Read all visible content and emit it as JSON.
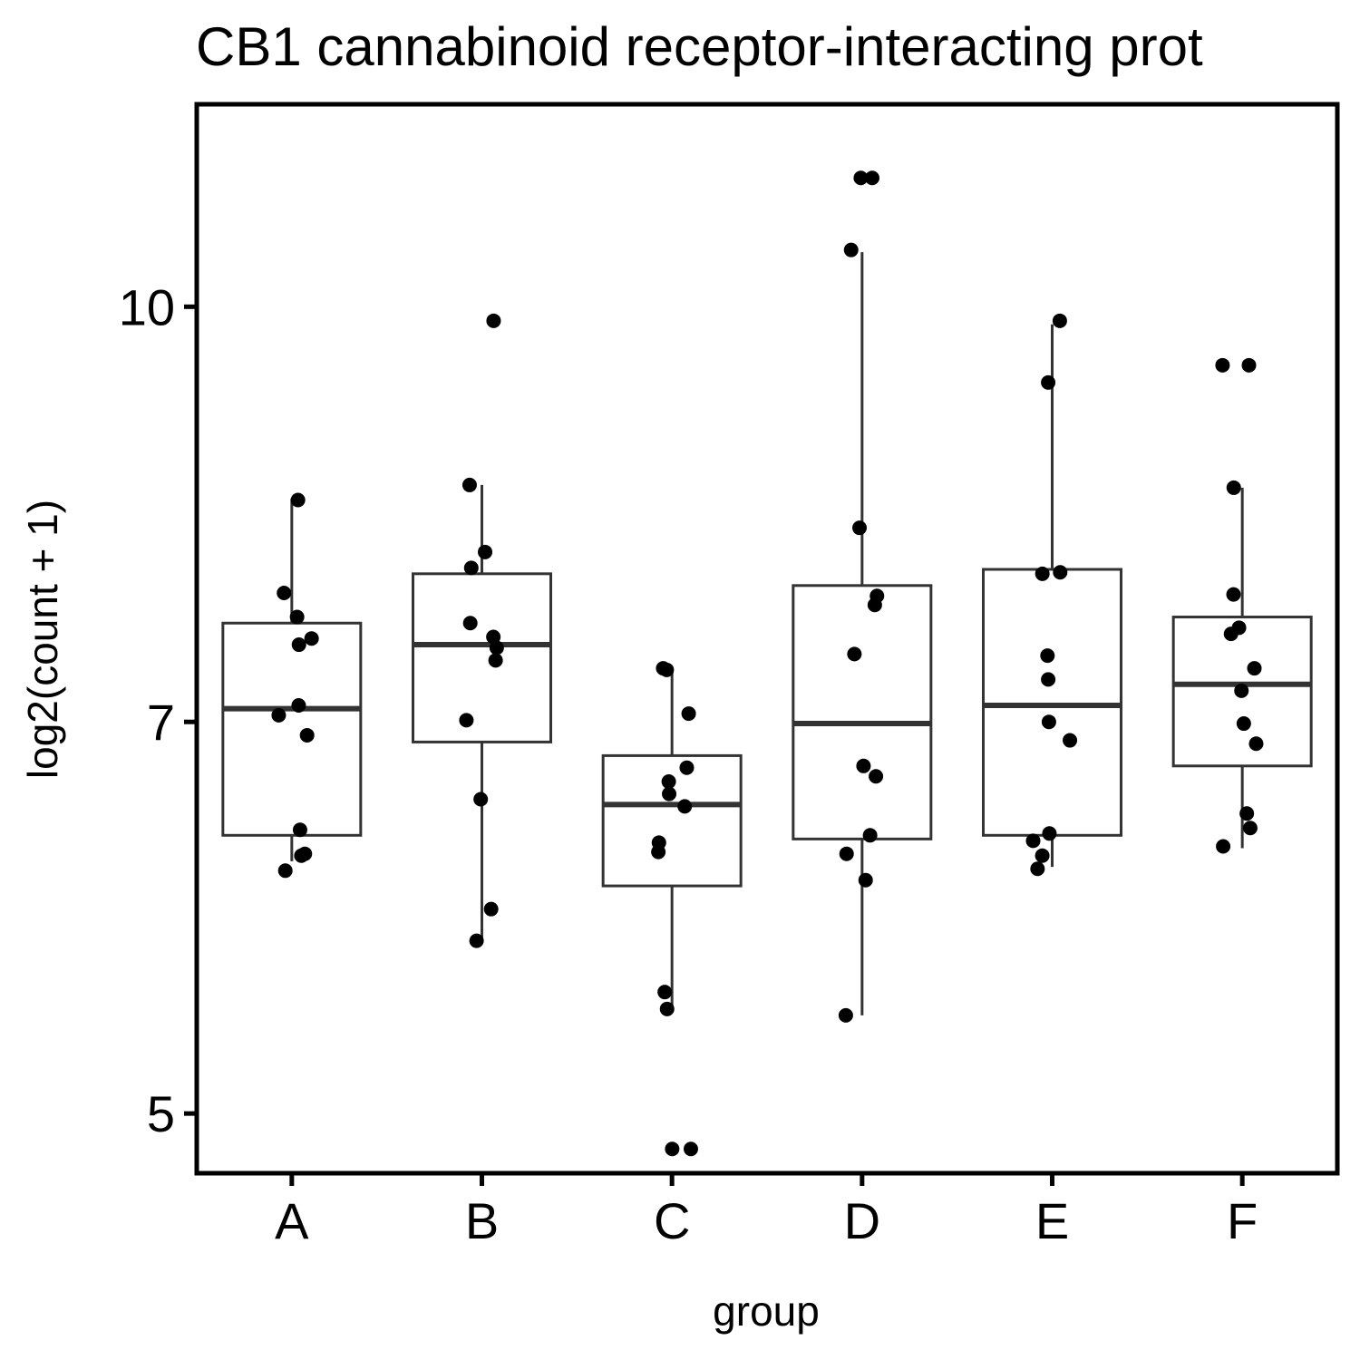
{
  "chart_data": {
    "type": "box",
    "title": "CB1 cannabinoid receptor-interacting prot",
    "xlabel": "group",
    "ylabel": "log2(count + 1)",
    "y_scale": "log",
    "ylim": [
      4.75,
      11.9
    ],
    "y_ticks": [
      5,
      7,
      10
    ],
    "y_tick_labels": [
      "5",
      "7",
      "10"
    ],
    "categories": [
      "A",
      "B",
      "C",
      "D",
      "E",
      "F"
    ],
    "boxes": [
      {
        "group": "A",
        "whisker_low": 6.21,
        "q1": 6.35,
        "median": 7.08,
        "q3": 7.62,
        "whisker_high": 8.48
      },
      {
        "group": "B",
        "whisker_low": 5.8,
        "q1": 6.88,
        "median": 7.48,
        "q3": 7.95,
        "whisker_high": 8.58
      },
      {
        "group": "C",
        "whisker_low": 5.47,
        "q1": 6.08,
        "median": 6.52,
        "q3": 6.8,
        "whisker_high": 7.33
      },
      {
        "group": "D",
        "whisker_low": 5.44,
        "q1": 6.33,
        "median": 6.99,
        "q3": 7.87,
        "whisker_high": 10.48
      },
      {
        "group": "E",
        "whisker_low": 6.18,
        "q1": 6.35,
        "median": 7.1,
        "q3": 7.98,
        "whisker_high": 9.85
      },
      {
        "group": "F",
        "whisker_low": 6.28,
        "q1": 6.74,
        "median": 7.23,
        "q3": 7.66,
        "whisker_high": 8.56
      }
    ],
    "points": {
      "A": [
        8.47,
        7.82,
        7.66,
        7.52,
        7.48,
        7.1,
        7.04,
        6.92,
        6.38,
        6.25,
        6.24,
        6.16
      ],
      "B": [
        9.88,
        8.58,
        8.1,
        7.99,
        7.62,
        7.53,
        7.46,
        7.38,
        7.01,
        6.55,
        5.96,
        5.8
      ],
      "C": [
        7.33,
        7.32,
        7.05,
        6.73,
        6.65,
        6.58,
        6.51,
        6.31,
        6.26,
        5.55,
        5.47,
        4.85,
        4.85
      ],
      "D": [
        11.17,
        11.17,
        10.5,
        8.27,
        7.8,
        7.74,
        7.42,
        6.74,
        6.68,
        6.35,
        6.25,
        6.11,
        5.44
      ],
      "E": [
        9.88,
        9.37,
        7.96,
        7.95,
        7.41,
        7.26,
        7.0,
        6.89,
        6.36,
        6.32,
        6.24,
        6.17
      ],
      "F": [
        9.51,
        9.51,
        8.56,
        7.81,
        7.59,
        7.55,
        7.33,
        7.19,
        6.99,
        6.87,
        6.47,
        6.39,
        6.29
      ]
    }
  }
}
